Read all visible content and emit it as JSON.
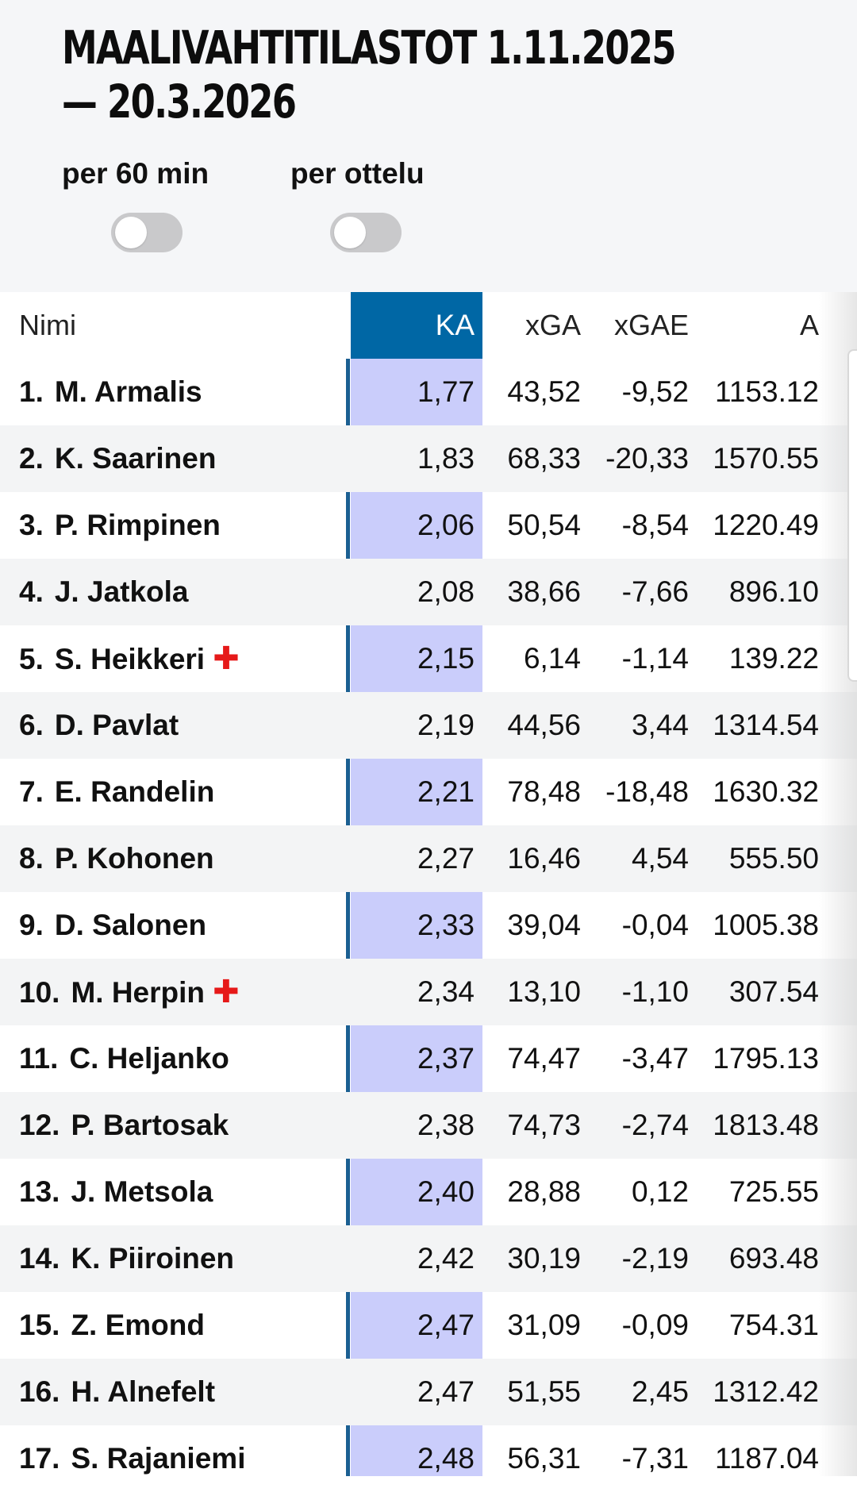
{
  "title": "MAALIVAHTITILASTOT 1.11.2025 — 20.3.2026",
  "toggles": [
    {
      "label": "per 60 min",
      "on": false
    },
    {
      "label": "per ottelu",
      "on": false
    }
  ],
  "columns": {
    "name": "Nimi",
    "ka": "KA",
    "xga": "xGA",
    "xgae": "xGAE",
    "a": "A"
  },
  "injury_icon": "red-cross-icon",
  "colors": {
    "ka_header": "#0067a5",
    "ka_column": "#cacdfb",
    "injury": "#e61919"
  },
  "rows": [
    {
      "rank": "1.",
      "name": "M. Armalis",
      "injured": false,
      "ka": "1,77",
      "xga": "43,52",
      "xgae": "-9,52",
      "a": "1153.12"
    },
    {
      "rank": "2.",
      "name": "K. Saarinen",
      "injured": false,
      "ka": "1,83",
      "xga": "68,33",
      "xgae": "-20,33",
      "a": "1570.55"
    },
    {
      "rank": "3.",
      "name": "P. Rimpinen",
      "injured": false,
      "ka": "2,06",
      "xga": "50,54",
      "xgae": "-8,54",
      "a": "1220.49"
    },
    {
      "rank": "4.",
      "name": "J. Jatkola",
      "injured": false,
      "ka": "2,08",
      "xga": "38,66",
      "xgae": "-7,66",
      "a": "896.10"
    },
    {
      "rank": "5.",
      "name": "S. Heikkeri",
      "injured": true,
      "ka": "2,15",
      "xga": "6,14",
      "xgae": "-1,14",
      "a": "139.22"
    },
    {
      "rank": "6.",
      "name": "D. Pavlat",
      "injured": false,
      "ka": "2,19",
      "xga": "44,56",
      "xgae": "3,44",
      "a": "1314.54"
    },
    {
      "rank": "7.",
      "name": "E. Randelin",
      "injured": false,
      "ka": "2,21",
      "xga": "78,48",
      "xgae": "-18,48",
      "a": "1630.32"
    },
    {
      "rank": "8.",
      "name": "P. Kohonen",
      "injured": false,
      "ka": "2,27",
      "xga": "16,46",
      "xgae": "4,54",
      "a": "555.50"
    },
    {
      "rank": "9.",
      "name": "D. Salonen",
      "injured": false,
      "ka": "2,33",
      "xga": "39,04",
      "xgae": "-0,04",
      "a": "1005.38"
    },
    {
      "rank": "10.",
      "name": "M. Herpin",
      "injured": true,
      "ka": "2,34",
      "xga": "13,10",
      "xgae": "-1,10",
      "a": "307.54"
    },
    {
      "rank": "11.",
      "name": "C. Heljanko",
      "injured": false,
      "ka": "2,37",
      "xga": "74,47",
      "xgae": "-3,47",
      "a": "1795.13"
    },
    {
      "rank": "12.",
      "name": "P. Bartosak",
      "injured": false,
      "ka": "2,38",
      "xga": "74,73",
      "xgae": "-2,74",
      "a": "1813.48"
    },
    {
      "rank": "13.",
      "name": "J. Metsola",
      "injured": false,
      "ka": "2,40",
      "xga": "28,88",
      "xgae": "0,12",
      "a": "725.55"
    },
    {
      "rank": "14.",
      "name": "K. Piiroinen",
      "injured": false,
      "ka": "2,42",
      "xga": "30,19",
      "xgae": "-2,19",
      "a": "693.48"
    },
    {
      "rank": "15.",
      "name": "Z. Emond",
      "injured": false,
      "ka": "2,47",
      "xga": "31,09",
      "xgae": "-0,09",
      "a": "754.31"
    },
    {
      "rank": "16.",
      "name": "H. Alnefelt",
      "injured": false,
      "ka": "2,47",
      "xga": "51,55",
      "xgae": "2,45",
      "a": "1312.42"
    },
    {
      "rank": "17.",
      "name": "S. Rajaniemi",
      "injured": false,
      "ka": "2,48",
      "xga": "56,31",
      "xgae": "-7,31",
      "a": "1187.04"
    }
  ]
}
